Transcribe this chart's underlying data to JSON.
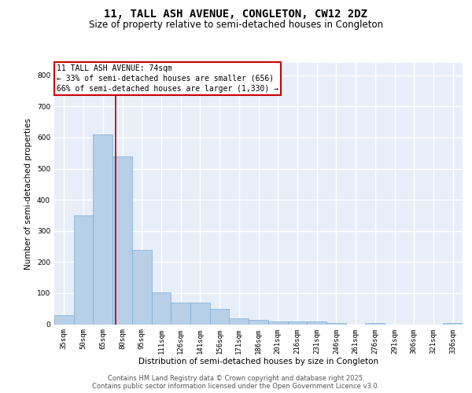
{
  "title1": "11, TALL ASH AVENUE, CONGLETON, CW12 2DZ",
  "title2": "Size of property relative to semi-detached houses in Congleton",
  "xlabel": "Distribution of semi-detached houses by size in Congleton",
  "ylabel": "Number of semi-detached properties",
  "categories": [
    "35sqm",
    "50sqm",
    "65sqm",
    "80sqm",
    "95sqm",
    "111sqm",
    "126sqm",
    "141sqm",
    "156sqm",
    "171sqm",
    "186sqm",
    "201sqm",
    "216sqm",
    "231sqm",
    "246sqm",
    "261sqm",
    "276sqm",
    "291sqm",
    "306sqm",
    "321sqm",
    "336sqm"
  ],
  "values": [
    30,
    350,
    610,
    540,
    240,
    102,
    70,
    70,
    50,
    20,
    15,
    10,
    10,
    8,
    5,
    0,
    5,
    0,
    0,
    0,
    5
  ],
  "bar_color": "#b8cfe8",
  "bar_edge_color": "#7aaed6",
  "background_color": "#e8eef8",
  "grid_color": "#ffffff",
  "property_label": "11 TALL ASH AVENUE: 74sqm",
  "annotation_line1": "← 33% of semi-detached houses are smaller (656)",
  "annotation_line2": "66% of semi-detached houses are larger (1,330) →",
  "vline_color": "#aa0000",
  "vline_x_bin": 2.67,
  "annotation_box_color": "#cc0000",
  "ylim": [
    0,
    840
  ],
  "yticks": [
    0,
    100,
    200,
    300,
    400,
    500,
    600,
    700,
    800
  ],
  "footer1": "Contains HM Land Registry data © Crown copyright and database right 2025.",
  "footer2": "Contains public sector information licensed under the Open Government Licence v3.0.",
  "title1_fontsize": 10,
  "title2_fontsize": 8.5,
  "axis_fontsize": 7.5,
  "tick_fontsize": 6.5,
  "footer_fontsize": 6,
  "ann_fontsize": 7
}
